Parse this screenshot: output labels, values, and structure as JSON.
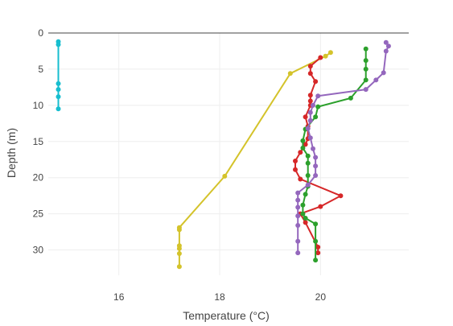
{
  "chart_data": {
    "type": "line",
    "xlabel": "Temperature (°C)",
    "ylabel": "Depth (m)",
    "xlim": [
      14.6,
      21.75
    ],
    "ylim": [
      0,
      33.5
    ],
    "y_reversed": true,
    "x_ticks": [
      16,
      18,
      20
    ],
    "y_ticks": [
      0,
      5,
      10,
      15,
      20,
      25,
      30
    ],
    "grid": true,
    "legend": "none",
    "colors": {
      "grid": "#eeeeee",
      "zero_line": "#444444",
      "text": "#444444"
    },
    "series": [
      {
        "color": "#17becf",
        "points": [
          [
            14.8,
            1.2
          ],
          [
            14.8,
            1.6
          ],
          [
            14.8,
            7.0
          ],
          [
            14.8,
            7.8
          ],
          [
            14.8,
            8.8
          ],
          [
            14.8,
            10.5
          ]
        ]
      },
      {
        "color": "#d4c32b",
        "points": [
          [
            20.2,
            2.7
          ],
          [
            20.1,
            3.2
          ],
          [
            19.4,
            5.6
          ],
          [
            18.1,
            19.8
          ],
          [
            17.2,
            26.9
          ],
          [
            17.2,
            27.2
          ],
          [
            17.2,
            29.4
          ],
          [
            17.2,
            29.8
          ],
          [
            17.2,
            30.5
          ],
          [
            17.2,
            32.3
          ]
        ]
      },
      {
        "color": "#d62728",
        "points": [
          [
            20.0,
            3.4
          ],
          [
            19.8,
            4.6
          ],
          [
            19.8,
            5.6
          ],
          [
            19.9,
            6.7
          ],
          [
            19.8,
            8.6
          ],
          [
            19.8,
            9.4
          ],
          [
            19.8,
            10.0
          ],
          [
            19.7,
            11.6
          ],
          [
            19.75,
            12.9
          ],
          [
            19.75,
            14.6
          ],
          [
            19.7,
            15.4
          ],
          [
            19.6,
            16.5
          ],
          [
            19.5,
            17.7
          ],
          [
            19.5,
            18.9
          ],
          [
            19.6,
            20.2
          ],
          [
            20.4,
            22.5
          ],
          [
            20.0,
            24.0
          ],
          [
            19.6,
            25.0
          ],
          [
            19.7,
            26.2
          ],
          [
            19.95,
            29.6
          ],
          [
            19.95,
            30.4
          ]
        ]
      },
      {
        "color": "#2ca02c",
        "points": [
          [
            20.9,
            2.2
          ],
          [
            20.9,
            3.8
          ],
          [
            20.9,
            5.0
          ],
          [
            20.9,
            6.5
          ],
          [
            20.6,
            9.0
          ],
          [
            19.95,
            10.2
          ],
          [
            19.9,
            11.6
          ],
          [
            19.7,
            13.3
          ],
          [
            19.65,
            14.9
          ],
          [
            19.65,
            15.9
          ],
          [
            19.75,
            17.0
          ],
          [
            19.75,
            18.0
          ],
          [
            19.75,
            19.7
          ],
          [
            19.75,
            21.2
          ],
          [
            19.7,
            22.3
          ],
          [
            19.65,
            23.8
          ],
          [
            19.65,
            25.0
          ],
          [
            19.7,
            25.6
          ],
          [
            19.9,
            26.4
          ],
          [
            19.9,
            28.8
          ],
          [
            19.9,
            31.4
          ]
        ]
      },
      {
        "color": "#9467bd",
        "points": [
          [
            21.3,
            1.3
          ],
          [
            21.35,
            1.8
          ],
          [
            21.3,
            2.5
          ],
          [
            21.25,
            5.5
          ],
          [
            21.1,
            6.5
          ],
          [
            20.9,
            7.8
          ],
          [
            19.95,
            8.7
          ],
          [
            19.85,
            10.0
          ],
          [
            19.8,
            11.0
          ],
          [
            19.8,
            12.1
          ],
          [
            19.75,
            13.2
          ],
          [
            19.8,
            14.5
          ],
          [
            19.85,
            16.0
          ],
          [
            19.9,
            17.2
          ],
          [
            19.9,
            18.4
          ],
          [
            19.9,
            19.7
          ],
          [
            19.75,
            21.0
          ],
          [
            19.55,
            22.1
          ],
          [
            19.55,
            23.1
          ],
          [
            19.55,
            24.1
          ],
          [
            19.55,
            25.3
          ],
          [
            19.55,
            26.6
          ],
          [
            19.55,
            28.8
          ],
          [
            19.55,
            30.4
          ]
        ]
      }
    ]
  }
}
